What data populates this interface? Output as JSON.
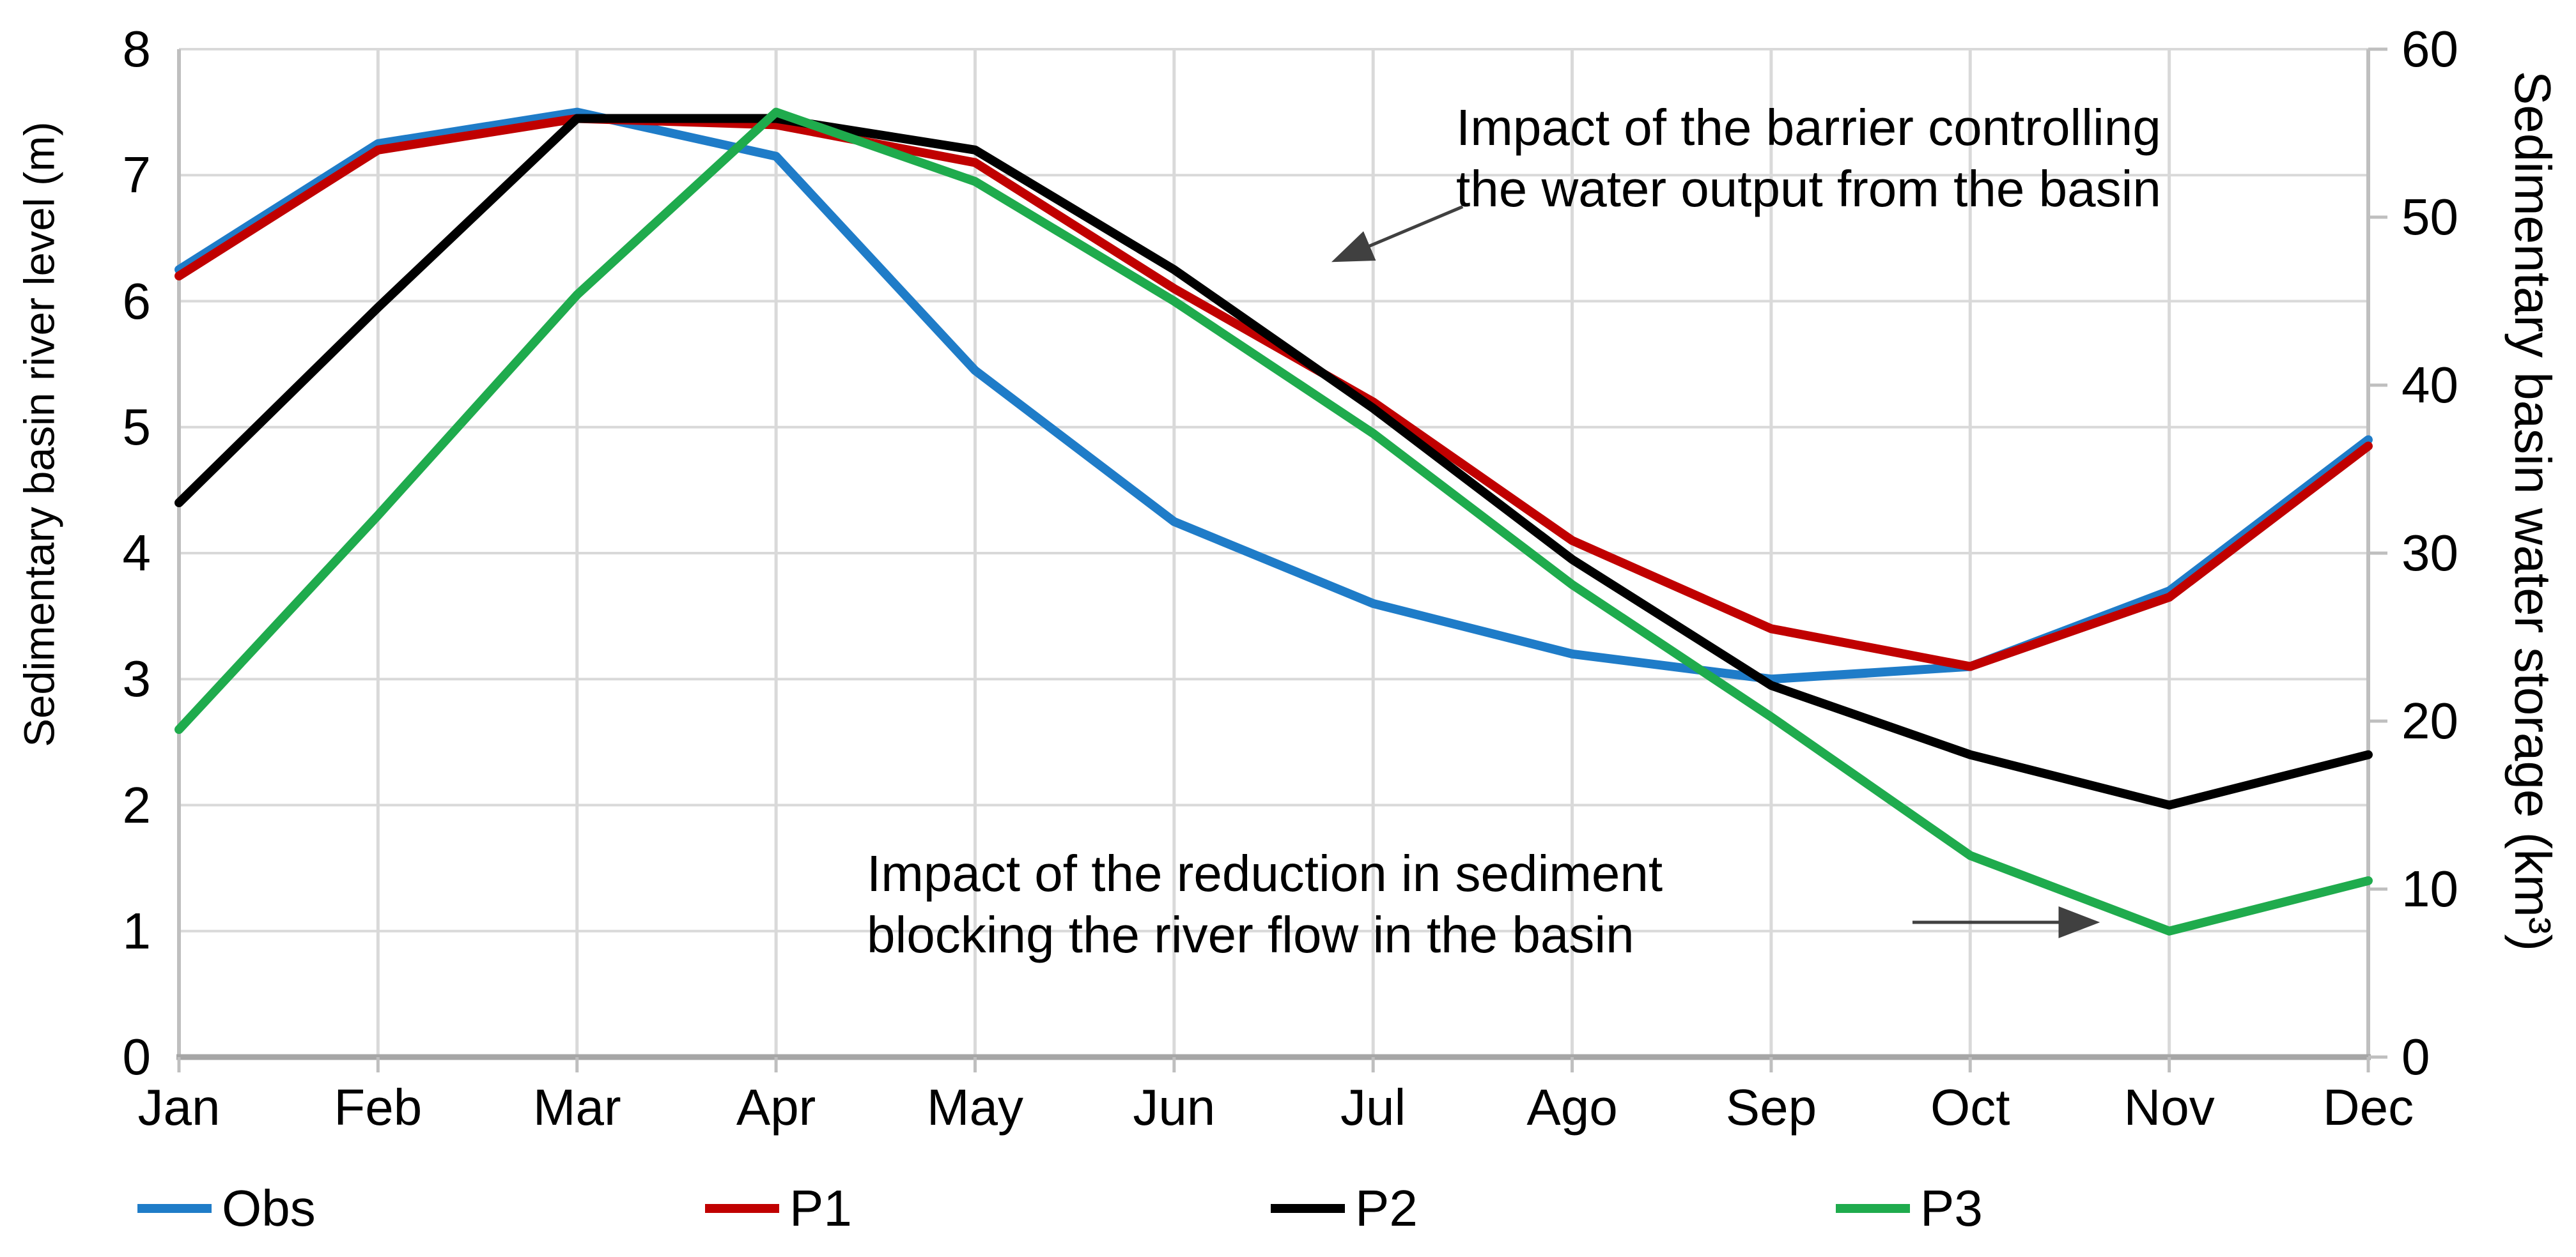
{
  "chart_data": {
    "type": "line",
    "title": "",
    "categories": [
      "Jan",
      "Feb",
      "Mar",
      "Apr",
      "May",
      "Jun",
      "Jul",
      "Ago",
      "Sep",
      "Oct",
      "Nov",
      "Dec"
    ],
    "series": [
      {
        "name": "Obs",
        "color": "#1F7CC8",
        "axis": "left",
        "values": [
          6.25,
          7.25,
          7.5,
          7.15,
          5.45,
          4.25,
          3.6,
          3.2,
          3.0,
          3.1,
          3.7,
          4.9
        ]
      },
      {
        "name": "P1",
        "color": "#C00000",
        "axis": "left",
        "values": [
          6.2,
          7.2,
          7.45,
          7.4,
          7.1,
          6.1,
          5.2,
          4.1,
          3.4,
          3.1,
          3.65,
          4.85
        ]
      },
      {
        "name": "P2",
        "color": "#000000",
        "axis": "left",
        "values": [
          4.4,
          5.95,
          7.45,
          7.45,
          7.2,
          6.25,
          5.15,
          3.95,
          2.95,
          2.4,
          2.0,
          2.4
        ]
      },
      {
        "name": "P3",
        "color": "#1FAB4D",
        "axis": "left",
        "values": [
          2.6,
          4.3,
          6.05,
          7.5,
          6.95,
          6.0,
          4.95,
          3.75,
          2.7,
          1.6,
          1.0,
          1.4
        ]
      }
    ],
    "y_left": {
      "label": "Sedimentary basin river level (m)",
      "min": 0,
      "max": 8,
      "step": 1
    },
    "y_right": {
      "label": "Sedimentary basin water storage (km³)",
      "min": 0,
      "max": 60,
      "step": 10
    },
    "xlabel": "",
    "grid": true,
    "legend_position": "bottom",
    "annotations": [
      {
        "id": "barrier",
        "text": "Impact of the barrier controlling\nthe water output from the basin",
        "arrow": {
          "from_x": 6.45,
          "from_y": 6.75,
          "to_x": 5.82,
          "to_y": 6.33
        }
      },
      {
        "id": "sediment",
        "text": "Impact of the reduction in sediment\nblocking the river flow in the basin",
        "arrow": {
          "from_x": 8.71,
          "from_y": 1.07,
          "to_x": 9.62,
          "to_y": 1.07
        }
      }
    ]
  },
  "colors": {
    "background": "#FFFFFF",
    "gridline": "#D9D9D9",
    "axis_line": "#BFBFBF",
    "axis_line_bottom": "#A6A6A6",
    "annotation_arrow": "#404040",
    "text": "#000000"
  }
}
